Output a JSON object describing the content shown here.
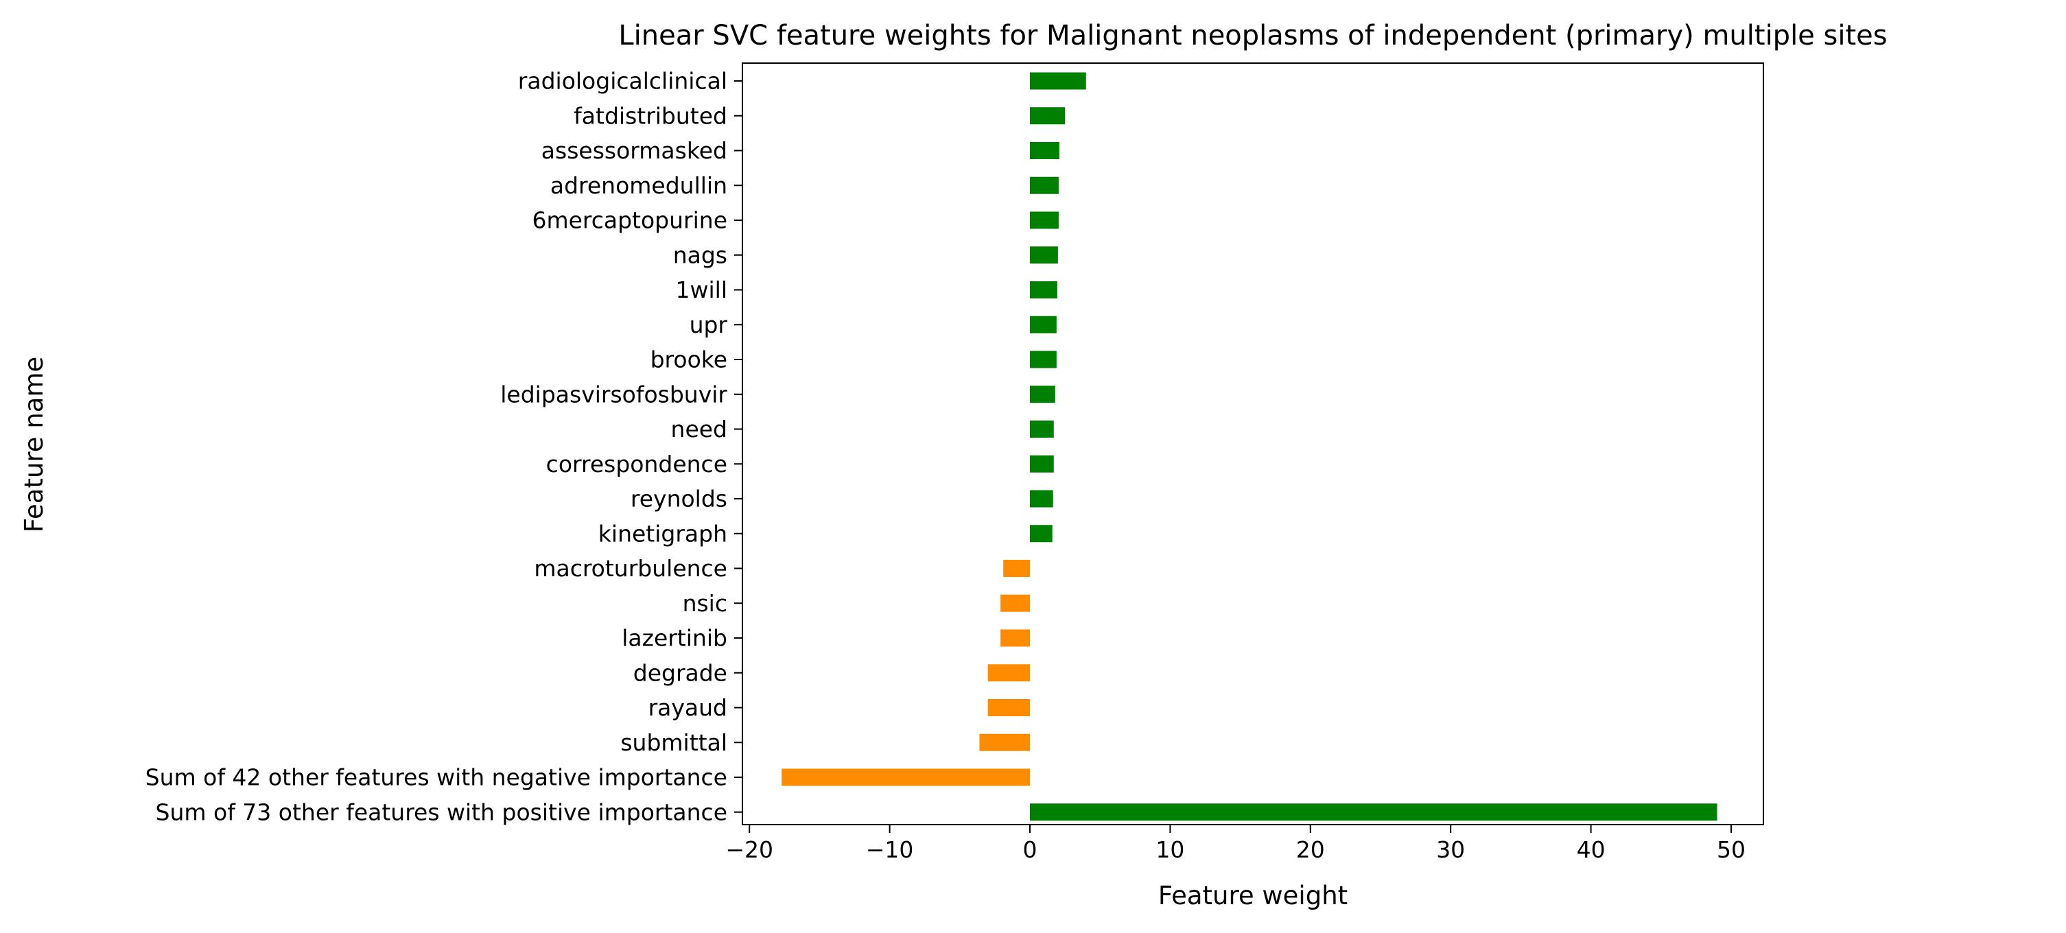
{
  "chart_data": {
    "type": "bar",
    "orientation": "horizontal",
    "title": "Linear SVC feature weights for Malignant neoplasms of independent (primary) multiple sites",
    "xlabel": "Feature weight",
    "ylabel": "Feature name",
    "xlim": [
      -20.5,
      52.3
    ],
    "xticks": [
      -20,
      -10,
      0,
      10,
      20,
      30,
      40,
      50
    ],
    "xtick_labels": [
      "−20",
      "−10",
      "0",
      "10",
      "20",
      "30",
      "40",
      "50"
    ],
    "grid": false,
    "legend": "none",
    "colors": {
      "positive": "#008000",
      "negative": "#ff8c00",
      "axis": "#000000"
    },
    "categories": [
      "radiologicalclinical",
      "fatdistributed",
      "assessormasked",
      "adrenomedullin",
      "6mercaptopurine",
      "nags",
      "1will",
      "upr",
      "brooke",
      "ledipasvirsofosbuvir",
      "need",
      "correspondence",
      "reynolds",
      "kinetigraph",
      "macroturbulence",
      "nsic",
      "lazertinib",
      "degrade",
      "rayaud",
      "submittal",
      "Sum of 42 other features with negative importance",
      "Sum of 73 other features with positive importance"
    ],
    "values": [
      4.0,
      2.5,
      2.1,
      2.05,
      2.05,
      2.0,
      1.95,
      1.9,
      1.9,
      1.8,
      1.7,
      1.7,
      1.65,
      1.6,
      -1.9,
      -2.1,
      -2.1,
      -3.0,
      -3.0,
      -3.6,
      -17.7,
      49.0
    ]
  }
}
